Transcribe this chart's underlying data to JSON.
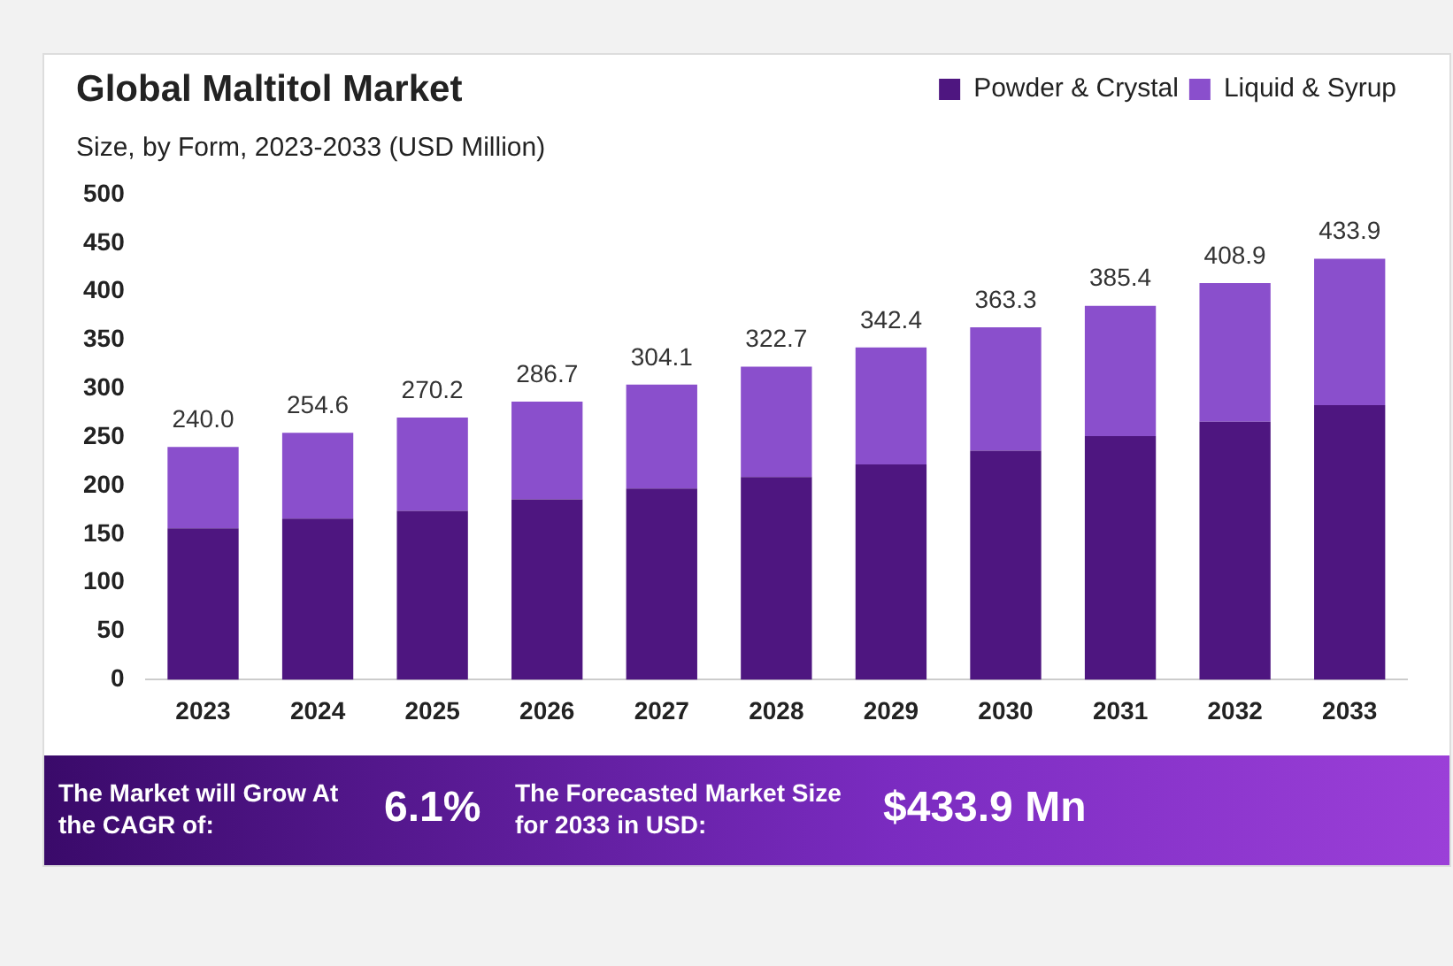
{
  "chart_data": {
    "type": "bar",
    "title": "Global Maltitol Market",
    "subtitle": "Size, by Form, 2023-2033 (USD Million)",
    "categories": [
      "2023",
      "2024",
      "2025",
      "2026",
      "2027",
      "2028",
      "2029",
      "2030",
      "2031",
      "2032",
      "2033"
    ],
    "series": [
      {
        "name": "Powder & Crystal",
        "color": "#4e1680",
        "values": [
          156,
          166,
          174,
          186,
          197,
          209,
          222,
          236,
          251,
          266,
          283
        ]
      },
      {
        "name": "Liquid & Syrup",
        "color": "#8a4fcc",
        "values": [
          84.0,
          88.6,
          96.2,
          100.7,
          107.1,
          113.7,
          120.4,
          127.3,
          134.4,
          142.9,
          150.9
        ]
      }
    ],
    "stacked": true,
    "totals": [
      "240.0",
      "254.6",
      "270.2",
      "286.7",
      "304.1",
      "322.7",
      "342.4",
      "363.3",
      "385.4",
      "408.9",
      "433.9"
    ],
    "ylim": [
      0,
      500
    ],
    "yticks": [
      0,
      50,
      100,
      150,
      200,
      250,
      300,
      350,
      400,
      450,
      500
    ],
    "grid": false,
    "legend": "top right",
    "annotations": [
      "The Market will Grow At the CAGR of:",
      "6.1%",
      "The Forecasted Market Size for 2033 in USD:",
      "$433.9 Mn"
    ]
  }
}
